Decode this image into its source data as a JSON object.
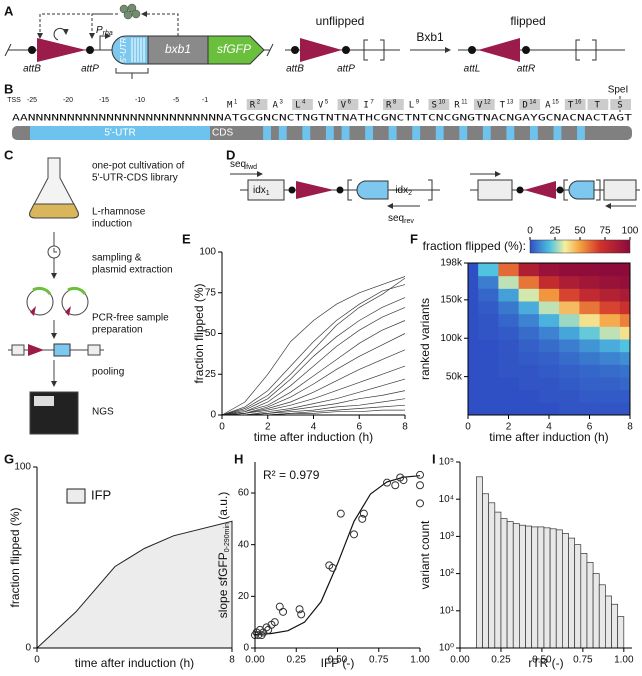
{
  "panel_labels": [
    "A",
    "B",
    "C",
    "D",
    "E",
    "F",
    "G",
    "H",
    "I"
  ],
  "panel_a": {
    "attB": "attB",
    "attP": "attP",
    "promoter": [
      "P",
      "rha"
    ],
    "utr": "5'-UTR",
    "gene": "bxb1",
    "reporter": "sfGFP",
    "unflipped": "unflipped",
    "flipped": "flipped",
    "enzyme": "Bxb1",
    "unflipped_sites": [
      "attB",
      "attP"
    ],
    "flipped_sites": [
      "attL",
      "attR"
    ]
  },
  "panel_b": {
    "tss": "TSS",
    "positions": [
      "-25",
      "-20",
      "-15",
      "-10",
      "-5",
      "-1"
    ],
    "sequence": "AANNNNNNNNNNNNNNNNNNNNNNNNNATGCGNCNCTNGTNTNATHCGNCTNTCNCGNGTNACNGAYGCNACNACTAGT",
    "residues": [
      "M",
      "R",
      "A",
      "L",
      "V",
      "V",
      "I",
      "R",
      "L",
      "S",
      "R",
      "V",
      "T",
      "D",
      "A",
      "T"
    ],
    "residue_numbers": [
      "1",
      "2",
      "3",
      "4",
      "5",
      "6",
      "7",
      "8",
      "9",
      "10",
      "11",
      "12",
      "13",
      "14",
      "15",
      "16"
    ],
    "trailing": [
      "T",
      "S"
    ],
    "site": "SpeI",
    "regions": [
      "5'-UTR",
      "CDS"
    ]
  },
  "panel_c": {
    "steps": [
      "one-pot cultivation of",
      "5'-UTR-CDS library",
      "L-rhamnose",
      "induction",
      "sampling &",
      "plasmid extraction",
      "PCR-free sample",
      "preparation",
      "pooling",
      "NGS"
    ]
  },
  "panel_d": {
    "primer_fwd": [
      "seq",
      "fwd"
    ],
    "primer_rev": [
      "seq",
      "rev"
    ],
    "index_1": [
      "idx",
      "1"
    ],
    "index_2": [
      "-idx",
      "2"
    ]
  },
  "chart_data": [
    {
      "type": "line",
      "xlabel": "time after induction (h)",
      "ylabel": "fraction flipped (%)",
      "color": "#3a3a3a",
      "x": [
        0,
        1,
        2,
        3,
        4,
        5,
        6,
        7,
        8
      ],
      "xlim": [
        0,
        8
      ],
      "ylim": [
        0,
        100
      ],
      "xticks": [
        0,
        2,
        4,
        6,
        8
      ],
      "yticks": [
        0,
        25,
        50,
        75,
        100
      ],
      "series": [
        {
          "values": [
            0,
            8,
            25,
            45,
            58,
            68,
            75,
            80,
            85
          ]
        },
        {
          "values": [
            0,
            5,
            15,
            30,
            45,
            58,
            68,
            76,
            80
          ]
        },
        {
          "values": [
            0,
            4,
            12,
            25,
            40,
            55,
            66,
            74,
            84
          ]
        },
        {
          "values": [
            0,
            3,
            10,
            22,
            36,
            48,
            58,
            66,
            72
          ]
        },
        {
          "values": [
            0,
            2,
            8,
            18,
            30,
            42,
            52,
            60,
            66
          ]
        },
        {
          "values": [
            0,
            2,
            6,
            14,
            24,
            34,
            44,
            52,
            58
          ]
        },
        {
          "values": [
            0,
            1,
            5,
            11,
            19,
            28,
            36,
            43,
            50
          ]
        },
        {
          "values": [
            0,
            1,
            4,
            8,
            14,
            21,
            28,
            34,
            40
          ]
        },
        {
          "values": [
            0,
            1,
            3,
            6,
            10,
            15,
            20,
            25,
            30
          ]
        },
        {
          "values": [
            0,
            0,
            2,
            4,
            7,
            10,
            14,
            18,
            22
          ]
        },
        {
          "values": [
            0,
            0,
            1,
            3,
            5,
            7,
            10,
            12,
            15
          ]
        },
        {
          "values": [
            0,
            0,
            1,
            2,
            3,
            5,
            6,
            8,
            10
          ]
        },
        {
          "values": [
            0,
            0,
            0,
            1,
            2,
            3,
            4,
            5,
            6
          ]
        },
        {
          "values": [
            0,
            0,
            0,
            1,
            1,
            2,
            2,
            3,
            3
          ]
        }
      ]
    },
    {
      "type": "heatmap",
      "xlabel": "time after induction (h)",
      "ylabel": "ranked variants",
      "colorbar_label": "fraction flipped (%):",
      "x": [
        0,
        1,
        2,
        3,
        4,
        5,
        6,
        7,
        8
      ],
      "xlim": [
        0,
        8
      ],
      "ylim": [
        0,
        198000
      ],
      "xticks": [
        0,
        2,
        4,
        6,
        8
      ],
      "yticks": [
        {
          "value": 50000,
          "label": "50k"
        },
        {
          "value": 100000,
          "label": "100k"
        },
        {
          "value": 150000,
          "label": "150k"
        },
        {
          "value": 198000,
          "label": "198k"
        }
      ],
      "zlim": [
        0,
        100
      ],
      "colorbar_ticks": [
        0,
        25,
        50,
        75,
        100
      ],
      "colorscale": [
        {
          "value": 0,
          "color": "#2f4fc4"
        },
        {
          "value": 20,
          "color": "#4fc3e0"
        },
        {
          "value": 35,
          "color": "#f5f0a0"
        },
        {
          "value": 50,
          "color": "#f5a040"
        },
        {
          "value": 70,
          "color": "#d0342c"
        },
        {
          "value": 100,
          "color": "#8b0a3c"
        }
      ],
      "z": [
        [
          0,
          0,
          0,
          0,
          0,
          1,
          1,
          1,
          1
        ],
        [
          0,
          0,
          0,
          0,
          1,
          1,
          2,
          2,
          2
        ],
        [
          0,
          0,
          0,
          1,
          1,
          2,
          3,
          3,
          4
        ],
        [
          0,
          0,
          1,
          1,
          2,
          3,
          4,
          5,
          6
        ],
        [
          0,
          0,
          1,
          2,
          3,
          5,
          7,
          9,
          11
        ],
        [
          0,
          0,
          1,
          3,
          5,
          8,
          12,
          16,
          20
        ],
        [
          0,
          1,
          2,
          5,
          9,
          15,
          22,
          30,
          38
        ],
        [
          0,
          1,
          4,
          9,
          17,
          27,
          38,
          48,
          56
        ],
        [
          0,
          2,
          7,
          16,
          30,
          45,
          58,
          67,
          73
        ],
        [
          0,
          4,
          14,
          32,
          52,
          67,
          77,
          83,
          87
        ],
        [
          0,
          8,
          30,
          58,
          76,
          86,
          91,
          94,
          96
        ],
        [
          0,
          20,
          60,
          85,
          94,
          97,
          98,
          99,
          99
        ]
      ]
    },
    {
      "type": "area",
      "xlabel": "time after induction (h)",
      "ylabel": "fraction flipped (%)",
      "x": [
        0,
        1.6,
        3.2,
        4.4,
        5.6,
        8
      ],
      "xlim": [
        0,
        8
      ],
      "ylim": [
        0,
        100
      ],
      "xticks": [
        0,
        8
      ],
      "yticks": [
        0,
        100
      ],
      "series": [
        {
          "name": "IFP",
          "color": "#ececec",
          "values": [
            0,
            20,
            45,
            55,
            62,
            70
          ]
        }
      ]
    },
    {
      "type": "scatter",
      "xlabel": "IFP (-)",
      "ylabel": [
        "slope sfGFP",
        "0-290min",
        " (a.u.)"
      ],
      "annotation": "R² = 0.979",
      "xlim": [
        0,
        1
      ],
      "ylim": [
        0,
        72
      ],
      "xticks": [
        {
          "value": 0,
          "label": "0.00"
        },
        {
          "value": 0.25,
          "label": "0.25"
        },
        {
          "value": 0.5,
          "label": "0.50"
        },
        {
          "value": 0.75,
          "label": "0.75"
        },
        {
          "value": 1,
          "label": "1.00"
        }
      ],
      "yticks": [
        0,
        20,
        40,
        60
      ],
      "x": [
        0,
        0.01,
        0.02,
        0.03,
        0.04,
        0.05,
        0.07,
        0.08,
        0.1,
        0.12,
        0.15,
        0.17,
        0.27,
        0.28,
        0.45,
        0.47,
        0.52,
        0.6,
        0.65,
        0.66,
        0.8,
        0.85,
        0.88,
        0.9,
        1,
        1,
        1
      ],
      "values": [
        5,
        6,
        5,
        7,
        5,
        6,
        8,
        7,
        9,
        10,
        16,
        14,
        15,
        13,
        32,
        31,
        52,
        44,
        50,
        52,
        64,
        63,
        66,
        65,
        67,
        63,
        56
      ],
      "fit": {
        "x": [
          0,
          0.1,
          0.2,
          0.3,
          0.4,
          0.5,
          0.6,
          0.7,
          0.8,
          0.9,
          1
        ],
        "values": [
          5.2,
          5.6,
          6.7,
          10,
          17.9,
          32.6,
          49,
          59.6,
          64.3,
          66.1,
          66.7
        ]
      }
    },
    {
      "type": "histogram",
      "xlabel": "rTR (-)",
      "ylabel": "variant count",
      "log_y": true,
      "xlim": [
        0,
        1.05
      ],
      "ylim": [
        1,
        100000
      ],
      "xticks": [
        {
          "value": 0,
          "label": "0.00"
        },
        {
          "value": 0.25,
          "label": "0.25"
        },
        {
          "value": 0.5,
          "label": "0.50"
        },
        {
          "value": 0.75,
          "label": "0.75"
        },
        {
          "value": 1,
          "label": "1.00"
        }
      ],
      "yticks": [
        {
          "value": 1,
          "label": "10⁰"
        },
        {
          "value": 10,
          "label": "10¹"
        },
        {
          "value": 100,
          "label": "10²"
        },
        {
          "value": 1000,
          "label": "10³"
        },
        {
          "value": 10000,
          "label": "10⁴"
        },
        {
          "value": 100000,
          "label": "10⁵"
        }
      ],
      "bins": [
        0.1,
        0.1375,
        0.175,
        0.2125,
        0.25,
        0.2875,
        0.325,
        0.3625,
        0.4,
        0.4375,
        0.475,
        0.5125,
        0.55,
        0.5875,
        0.625,
        0.6625,
        0.7,
        0.7375,
        0.775,
        0.8125,
        0.85,
        0.8875,
        0.925,
        0.9625,
        1.0
      ],
      "values": [
        40000,
        14000,
        8000,
        4500,
        3000,
        2500,
        2200,
        2000,
        1900,
        1800,
        1800,
        1700,
        1600,
        1500,
        1200,
        900,
        600,
        350,
        200,
        100,
        50,
        25,
        15,
        7
      ]
    }
  ]
}
